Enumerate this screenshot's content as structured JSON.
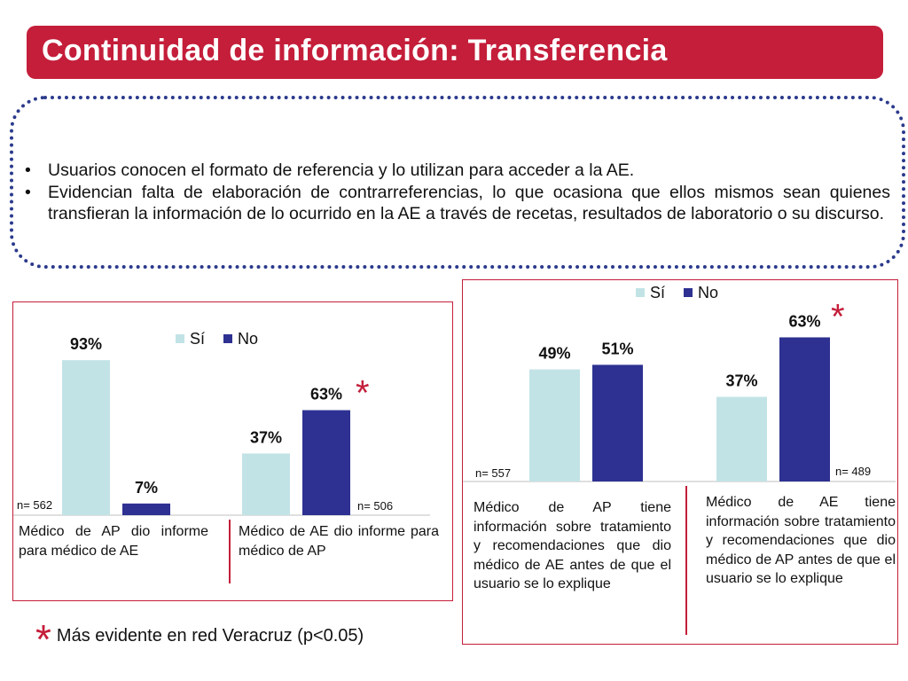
{
  "slide": {
    "title": "Continuidad de información: Transferencia",
    "bullets": [
      "Usuarios conocen el formato de referencia y lo utilizan para acceder a la AE.",
      "Evidencian falta de elaboración de contrarreferencias, lo que ocasiona que ellos mismos sean quienes transfieran la información de lo ocurrido en la AE a través de recetas, resultados de laboratorio o su discurso."
    ],
    "bullet_marker": "•",
    "footnote_star": "*",
    "footnote": "Más evidente en red Veracruz (p<0.05)",
    "colors": {
      "brand": "#c41e3a",
      "si": "#c2e3e6",
      "no": "#2e3192",
      "border": "#2b3a8c"
    }
  },
  "chart_data": [
    {
      "type": "bar",
      "legend": [
        "Sí",
        "No"
      ],
      "legend_position": "top",
      "categories": [
        "Médico de AP dio informe para médico de AE",
        "Médico de AE dio informe para médico de AP"
      ],
      "series": [
        {
          "name": "Sí",
          "values": [
            93,
            37
          ]
        },
        {
          "name": "No",
          "values": [
            7,
            63
          ]
        }
      ],
      "data_labels": [
        [
          "93%",
          "37%"
        ],
        [
          "7%",
          "63%"
        ]
      ],
      "n_labels": [
        "n= 562",
        "n= 506"
      ],
      "star": "*",
      "ylim": [
        0,
        100
      ]
    },
    {
      "type": "bar",
      "legend": [
        "Sí",
        "No"
      ],
      "legend_position": "top-left",
      "categories": [
        "Médico de AP tiene información sobre tratamiento y recomendaciones que dio médico de AE antes de que el usuario se lo explique",
        "Médico de AE tiene información sobre tratamiento y recomendaciones que dio médico de AP antes de que el usuario se lo explique"
      ],
      "series": [
        {
          "name": "Sí",
          "values": [
            49,
            37
          ]
        },
        {
          "name": "No",
          "values": [
            51,
            63
          ]
        }
      ],
      "data_labels": [
        [
          "49%",
          "37%"
        ],
        [
          "51%",
          "63%"
        ]
      ],
      "n_labels": [
        "n= 557",
        "n= 489"
      ],
      "star": "*",
      "ylim": [
        0,
        100
      ]
    }
  ]
}
